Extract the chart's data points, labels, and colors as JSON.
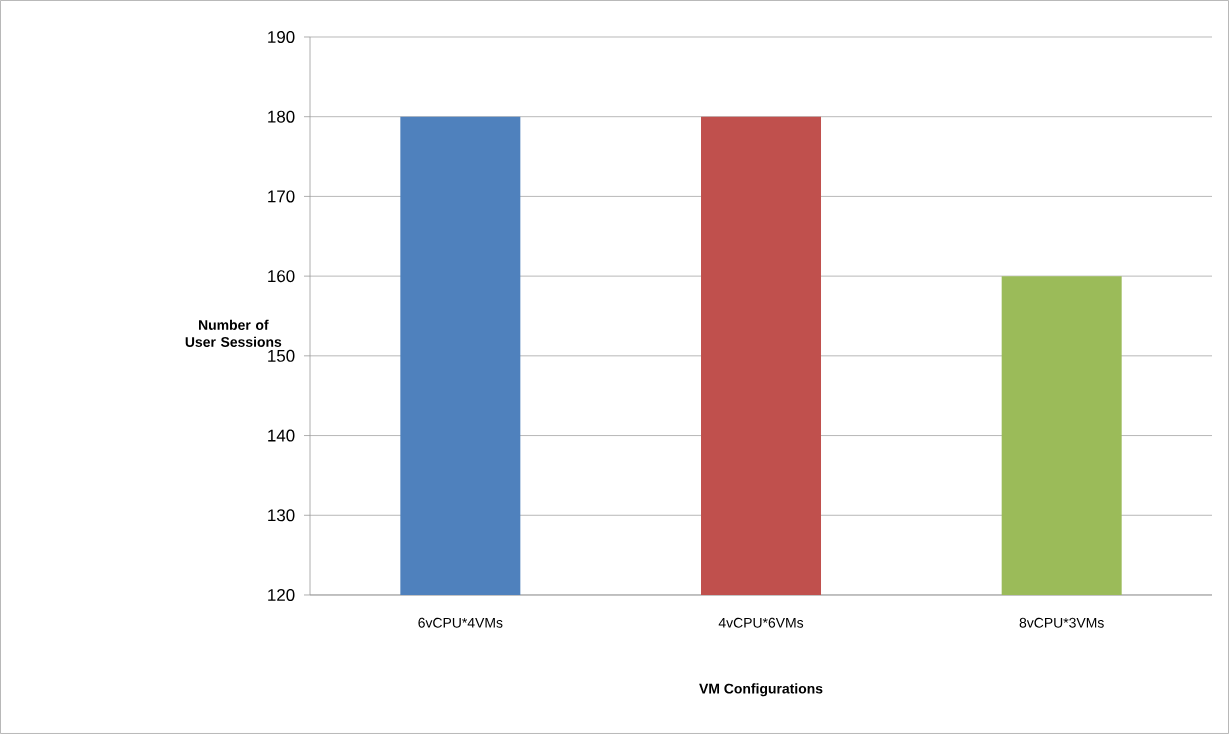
{
  "chart_data": {
    "type": "bar",
    "xlabel": "VM Configurations",
    "ylabel": "Number of User Sessions",
    "categories": [
      "6vCPU*4VMs",
      "4vCPU*6VMs",
      "8vCPU*3VMs"
    ],
    "values": [
      180,
      180,
      160
    ],
    "colors": [
      "#4f81bd",
      "#c0504d",
      "#9bbb59"
    ],
    "ylim": [
      120,
      190
    ],
    "yticks": [
      120,
      130,
      140,
      150,
      160,
      170,
      180,
      190
    ],
    "grid": "y"
  }
}
